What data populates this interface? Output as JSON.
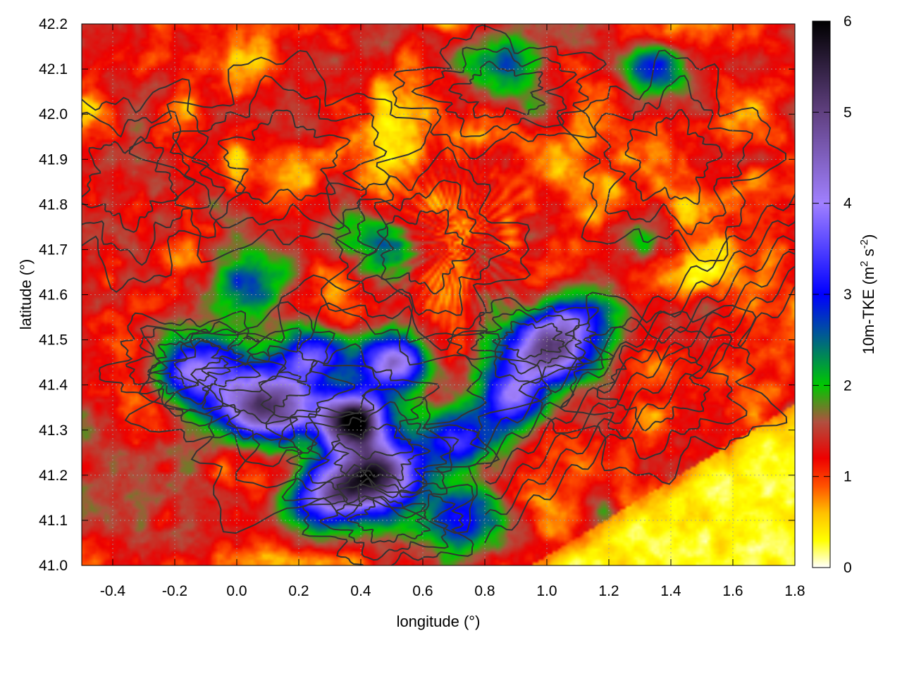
{
  "chart_data": {
    "type": "heatmap",
    "title": "",
    "xlabel": "longitude (°)",
    "ylabel": "latitude (°)",
    "colorbar_label": "10m-TKE (m² s⁻²)",
    "colorbar_label_parts": {
      "base": "10m-TKE (m",
      "sup1": "2",
      "mid": " s",
      "sup2": "-2",
      "end": ")"
    },
    "xlim": [
      -0.5,
      1.8
    ],
    "ylim": [
      41.0,
      42.2
    ],
    "clim": [
      0,
      6
    ],
    "x_ticks": [
      -0.4,
      -0.2,
      0.0,
      0.2,
      0.4,
      0.6,
      0.8,
      1.0,
      1.2,
      1.4,
      1.6,
      1.8
    ],
    "x_tick_labels": [
      "-0.4",
      "-0.2",
      "0.0",
      "0.2",
      "0.4",
      "0.6",
      "0.8",
      "1.0",
      "1.2",
      "1.4",
      "1.6",
      "1.8"
    ],
    "y_ticks": [
      41.0,
      41.1,
      41.2,
      41.3,
      41.4,
      41.5,
      41.6,
      41.7,
      41.8,
      41.9,
      42.0,
      42.1,
      42.2
    ],
    "y_tick_labels": [
      "41.0",
      "41.1",
      "41.2",
      "41.3",
      "41.4",
      "41.5",
      "41.6",
      "41.7",
      "41.8",
      "41.9",
      "42.0",
      "42.1",
      "42.2"
    ],
    "colorbar_ticks": [
      0,
      1,
      2,
      3,
      4,
      5,
      6
    ],
    "colorbar_tick_labels": [
      "0",
      "1",
      "2",
      "3",
      "4",
      "5",
      "6"
    ],
    "colormap": [
      {
        "v": 0.0,
        "color": "#ffffff"
      },
      {
        "v": 0.3,
        "color": "#ffff00"
      },
      {
        "v": 0.6,
        "color": "#ffc000"
      },
      {
        "v": 0.9,
        "color": "#ff5000"
      },
      {
        "v": 1.2,
        "color": "#ee0000"
      },
      {
        "v": 1.6,
        "color": "#b05040"
      },
      {
        "v": 2.0,
        "color": "#00c800"
      },
      {
        "v": 2.6,
        "color": "#0050a0"
      },
      {
        "v": 3.0,
        "color": "#0000ff"
      },
      {
        "v": 4.0,
        "color": "#a080ff"
      },
      {
        "v": 5.0,
        "color": "#604080"
      },
      {
        "v": 6.0,
        "color": "#000000"
      }
    ],
    "grid": true,
    "contour_color": "#333333",
    "tke_hotspots": [
      {
        "lon": 0.38,
        "lat": 41.32,
        "tke": 5.8
      },
      {
        "lon": 0.45,
        "lat": 41.2,
        "tke": 5.6
      },
      {
        "lon": 0.12,
        "lat": 41.35,
        "tke": 5.2
      },
      {
        "lon": 0.5,
        "lat": 41.45,
        "tke": 4.8
      },
      {
        "lon": 1.0,
        "lat": 41.47,
        "tke": 5.0
      },
      {
        "lon": -0.1,
        "lat": 41.43,
        "tke": 3.8
      },
      {
        "lon": 0.25,
        "lat": 41.47,
        "tke": 3.6
      },
      {
        "lon": 0.3,
        "lat": 41.15,
        "tke": 4.0
      },
      {
        "lon": 0.7,
        "lat": 41.28,
        "tke": 3.5
      },
      {
        "lon": 0.9,
        "lat": 41.37,
        "tke": 3.5
      },
      {
        "lon": 1.1,
        "lat": 41.55,
        "tke": 3.2
      },
      {
        "lon": 0.85,
        "lat": 42.1,
        "tke": 3.0
      },
      {
        "lon": 1.35,
        "lat": 42.1,
        "tke": 3.2
      },
      {
        "lon": 0.05,
        "lat": 41.62,
        "tke": 2.5
      },
      {
        "lon": 0.45,
        "lat": 41.72,
        "tke": 2.6
      },
      {
        "lon": 1.3,
        "lat": 41.72,
        "tke": 2.6
      },
      {
        "lon": 0.72,
        "lat": 41.1,
        "tke": 3.2
      }
    ]
  }
}
